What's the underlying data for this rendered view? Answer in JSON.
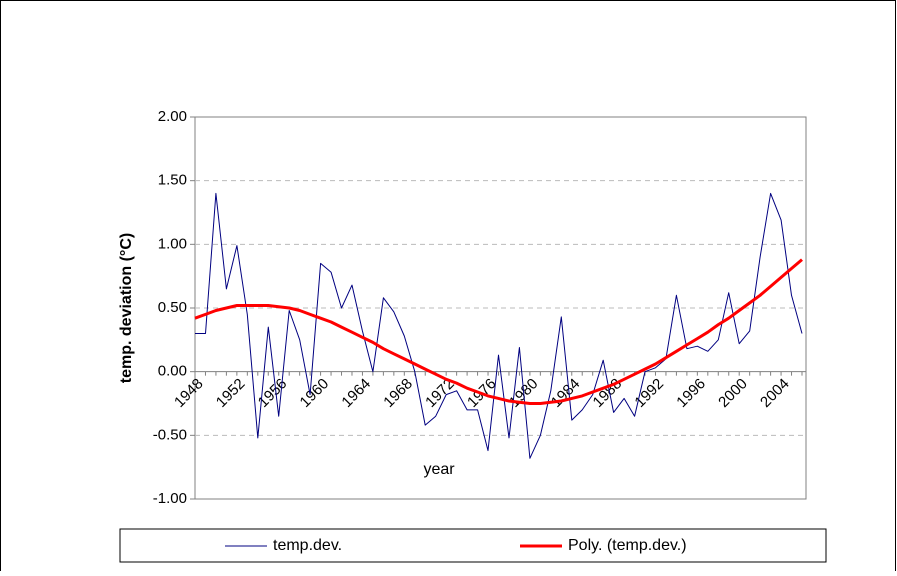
{
  "chart_data": {
    "type": "line",
    "y_label": "temp. deviation (°C)",
    "x_label": "year",
    "categories": [
      "1948",
      null,
      null,
      null,
      "1952",
      null,
      null,
      null,
      "1956",
      null,
      null,
      null,
      "1960",
      null,
      null,
      null,
      "1964",
      null,
      null,
      null,
      "1968",
      null,
      null,
      null,
      "1972",
      null,
      null,
      null,
      "1976",
      null,
      null,
      null,
      "1980",
      null,
      null,
      null,
      "1984",
      null,
      null,
      null,
      "1988",
      null,
      null,
      null,
      "1992",
      null,
      null,
      null,
      "1996",
      null,
      null,
      null,
      "2000",
      null,
      null,
      null,
      "2004",
      null,
      null
    ],
    "series": [
      {
        "name": "temp.dev.",
        "color": "#000080",
        "width": 1,
        "values": [
          0.3,
          0.3,
          1.4,
          0.65,
          0.99,
          0.45,
          -0.52,
          0.35,
          -0.35,
          0.48,
          0.25,
          -0.18,
          0.85,
          0.78,
          0.5,
          0.68,
          0.32,
          0,
          0.58,
          0.47,
          0.28,
          0,
          -0.42,
          -0.35,
          -0.18,
          -0.15,
          -0.3,
          -0.3,
          -0.62,
          0.13,
          -0.52,
          0.19,
          -0.68,
          -0.5,
          -0.15,
          0.43,
          -0.38,
          -0.3,
          -0.18,
          0.09,
          -0.32,
          -0.21,
          -0.35,
          0,
          0.03,
          0.1,
          0.6,
          0.18,
          0.2,
          0.16,
          0.25,
          0.62,
          0.22,
          0.32,
          0.9,
          1.4,
          1.19,
          0.6,
          0.3
        ]
      },
      {
        "name": "Poly. (temp.dev.)",
        "color": "#ff0000",
        "width": 3,
        "values": [
          0.42,
          0.45,
          0.48,
          0.5,
          0.52,
          0.52,
          0.52,
          0.52,
          0.51,
          0.5,
          0.48,
          0.45,
          0.42,
          0.39,
          0.35,
          0.31,
          0.27,
          0.23,
          0.18,
          0.14,
          0.1,
          0.06,
          0.02,
          -0.02,
          -0.06,
          -0.09,
          -0.13,
          -0.16,
          -0.19,
          -0.21,
          -0.23,
          -0.24,
          -0.25,
          -0.25,
          -0.24,
          -0.23,
          -0.21,
          -0.19,
          -0.16,
          -0.13,
          -0.1,
          -0.06,
          -0.02,
          0.02,
          0.06,
          0.11,
          0.16,
          0.21,
          0.26,
          0.31,
          0.37,
          0.42,
          0.48,
          0.54,
          0.6,
          0.67,
          0.74,
          0.81,
          0.88
        ]
      }
    ],
    "ylim": [
      -1,
      2
    ],
    "yticks": [
      {
        "value": -1,
        "label": "-1.00"
      },
      {
        "value": -0.5,
        "label": "-0.50"
      },
      {
        "value": 0,
        "label": "0.00"
      },
      {
        "value": 0.5,
        "label": "0.50"
      },
      {
        "value": 1,
        "label": "1.00"
      },
      {
        "value": 1.5,
        "label": "1.50"
      },
      {
        "value": 2,
        "label": "2.00"
      }
    ],
    "grid": true,
    "legend": "bottom"
  }
}
